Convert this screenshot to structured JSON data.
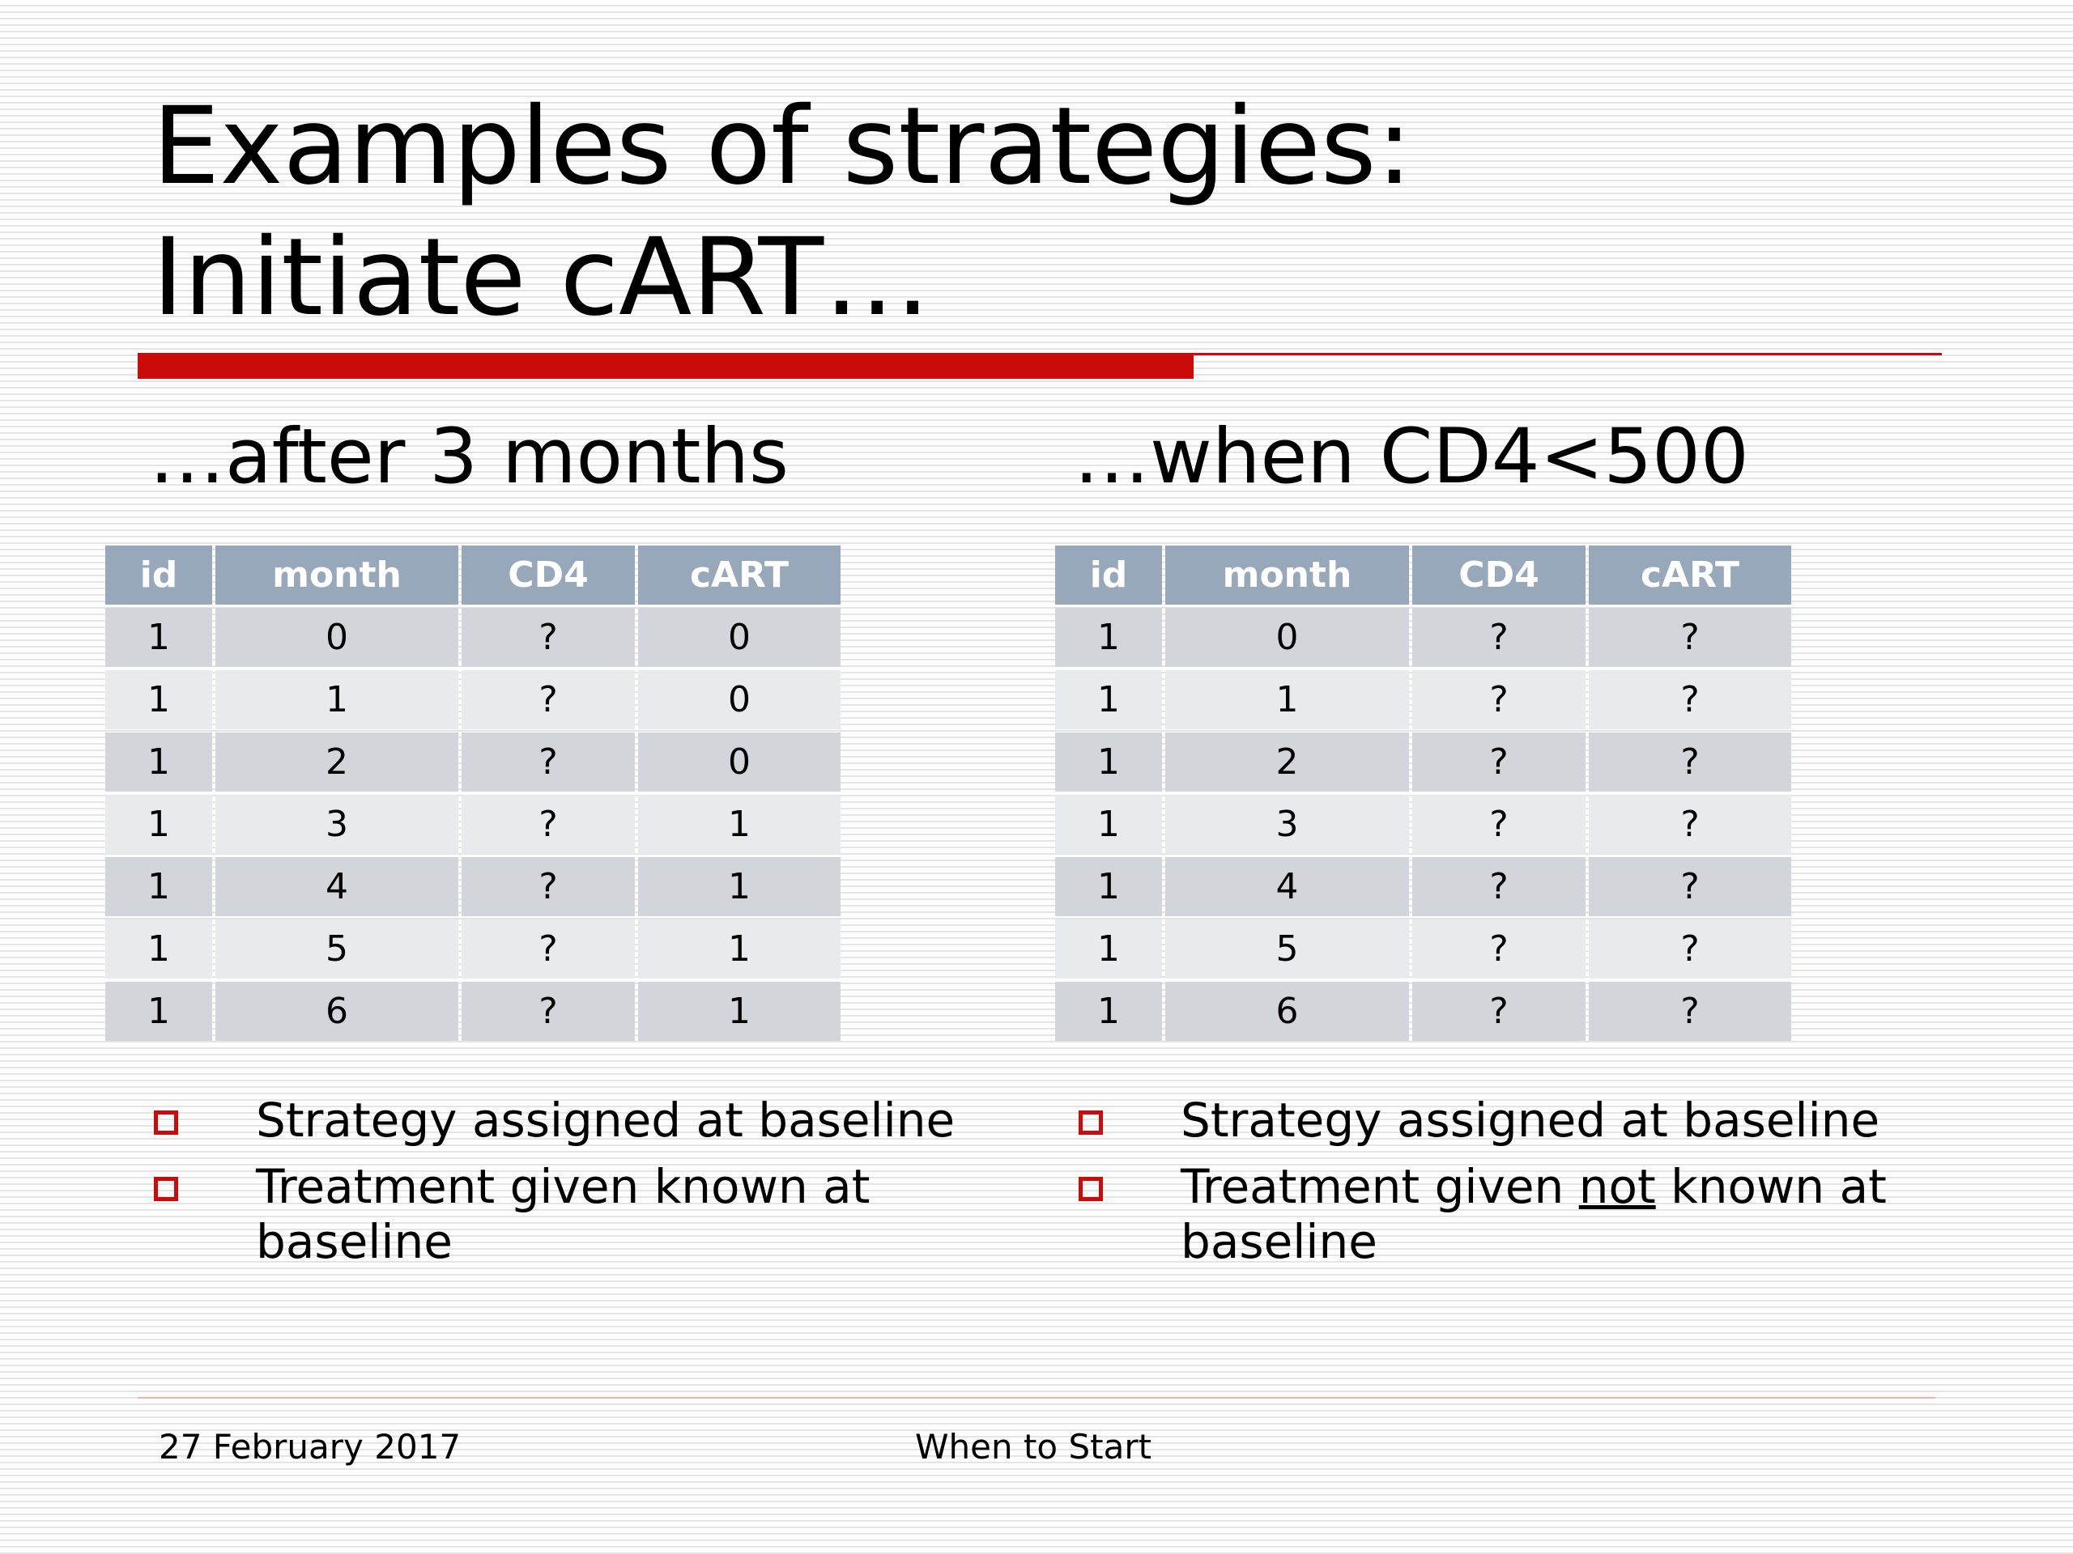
{
  "slide": {
    "title_line1": "Examples of strategies:",
    "title_line2": "Initiate cART…",
    "accent_color": "#cc0a0a",
    "header_fill_color": "#97a8ba"
  },
  "left": {
    "heading": "…after 3 months",
    "table": {
      "columns": [
        "id",
        "month",
        "CD4",
        "cART"
      ],
      "rows": [
        [
          "1",
          "0",
          "?",
          "0"
        ],
        [
          "1",
          "1",
          "?",
          "0"
        ],
        [
          "1",
          "2",
          "?",
          "0"
        ],
        [
          "1",
          "3",
          "?",
          "1"
        ],
        [
          "1",
          "4",
          "?",
          "1"
        ],
        [
          "1",
          "5",
          "?",
          "1"
        ],
        [
          "1",
          "6",
          "?",
          "1"
        ]
      ]
    },
    "bullets": {
      "b1": "Strategy assigned at baseline",
      "b2": "Treatment given known at baseline"
    }
  },
  "right": {
    "heading": "…when CD4<500",
    "table": {
      "columns": [
        "id",
        "month",
        "CD4",
        "cART"
      ],
      "rows": [
        [
          "1",
          "0",
          "?",
          "?"
        ],
        [
          "1",
          "1",
          "?",
          "?"
        ],
        [
          "1",
          "2",
          "?",
          "?"
        ],
        [
          "1",
          "3",
          "?",
          "?"
        ],
        [
          "1",
          "4",
          "?",
          "?"
        ],
        [
          "1",
          "5",
          "?",
          "?"
        ],
        [
          "1",
          "6",
          "?",
          "?"
        ]
      ]
    },
    "bullets": {
      "b1": "Strategy assigned at baseline",
      "b2_before": "Treatment given ",
      "b2_emph": "not",
      "b2_after": " known at baseline"
    }
  },
  "footer": {
    "date": "27 February 2017",
    "presentation_title": "When to Start"
  }
}
